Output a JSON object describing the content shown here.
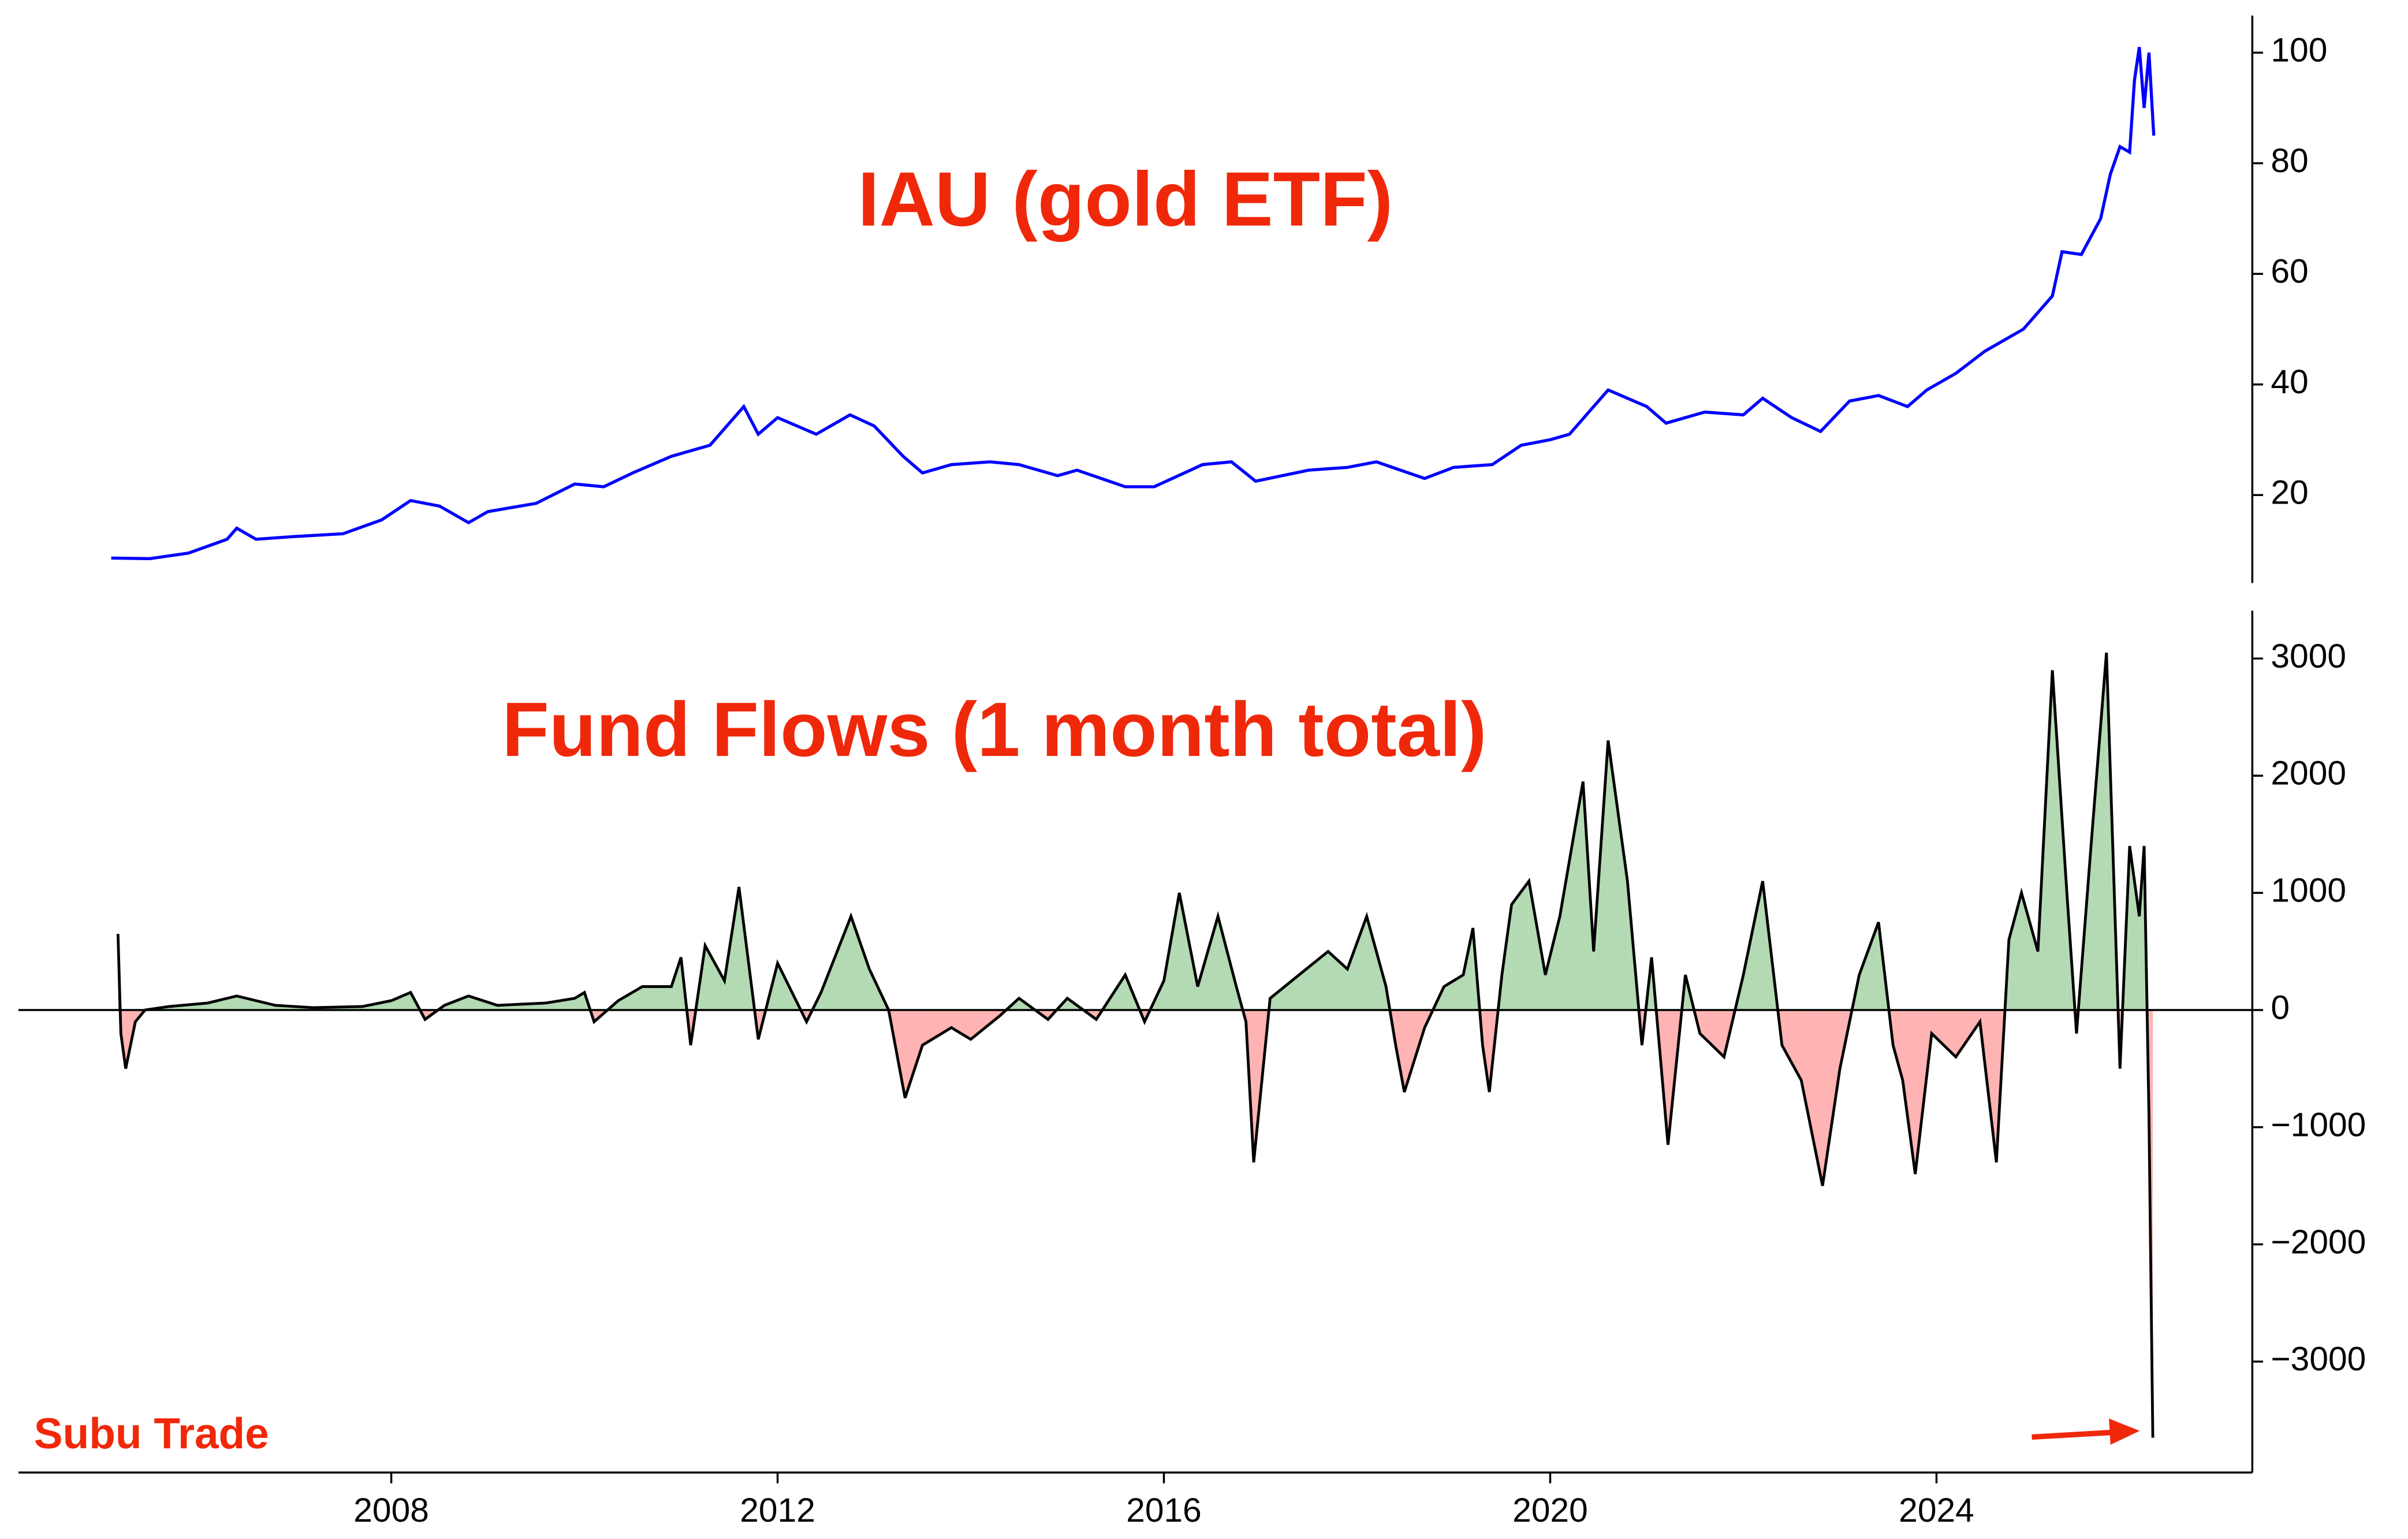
{
  "chart_data": [
    {
      "type": "line",
      "title": "IAU (gold ETF)",
      "color": "#0000ff",
      "xlim": [
        2004.14,
        2027.27
      ],
      "ylim": [
        4.1,
        106.7
      ],
      "yticks": [
        20,
        40,
        60,
        80,
        100
      ],
      "x": [
        2005.1,
        2005.5,
        2005.9,
        2006.3,
        2006.4,
        2006.6,
        2007.0,
        2007.5,
        2007.9,
        2008.2,
        2008.5,
        2008.8,
        2009.0,
        2009.5,
        2009.9,
        2010.2,
        2010.5,
        2010.9,
        2011.3,
        2011.65,
        2011.8,
        2012.0,
        2012.4,
        2012.75,
        2013.0,
        2013.3,
        2013.5,
        2013.8,
        2014.2,
        2014.5,
        2014.9,
        2015.1,
        2015.6,
        2015.9,
        2016.4,
        2016.7,
        2016.95,
        2017.5,
        2017.9,
        2018.2,
        2018.7,
        2019.0,
        2019.4,
        2019.7,
        2020.0,
        2020.2,
        2020.6,
        2021.0,
        2021.2,
        2021.6,
        2022.0,
        2022.2,
        2022.5,
        2022.8,
        2023.1,
        2023.4,
        2023.7,
        2023.9,
        2024.2,
        2024.5,
        2024.9,
        2025.2,
        2025.3,
        2025.5,
        2025.7,
        2025.8,
        2025.9,
        2026.0,
        2026.05,
        2026.1,
        2026.15,
        2026.2,
        2026.25
      ],
      "values": [
        8.6,
        8.5,
        9.5,
        12,
        14,
        12,
        12.5,
        13,
        15.5,
        19,
        18,
        15,
        17,
        18.5,
        22,
        21.5,
        24,
        27,
        29,
        36,
        31,
        34,
        31,
        34.5,
        32.5,
        27,
        24,
        25.5,
        26,
        25.5,
        23.5,
        24.5,
        21.5,
        21.5,
        25.5,
        26,
        22.5,
        24.5,
        25,
        26,
        23,
        25,
        25.5,
        29,
        30,
        31,
        39,
        36,
        33,
        35,
        34.5,
        37.5,
        34,
        31.5,
        37,
        38,
        36,
        39,
        42,
        46,
        50,
        56,
        64,
        63.5,
        70,
        78,
        83,
        82,
        95,
        101,
        90,
        100,
        85
      ]
    },
    {
      "type": "area",
      "title": "Fund Flows (1 month total)",
      "annotation": "Subu Trade",
      "line_color": "#000000",
      "positive_color": "#b3dab3",
      "negative_color": "#ffb3b3",
      "xlim": [
        2004.14,
        2027.27
      ],
      "xticks": [
        2008,
        2012,
        2016,
        2020,
        2024
      ],
      "ylim": [
        -3947,
        3408
      ],
      "yticks": [
        {
          "value": -3000,
          "label": "−3000"
        },
        {
          "value": -2000,
          "label": "−2000"
        },
        {
          "value": -1000,
          "label": "−1000"
        },
        0,
        1000,
        2000,
        3000
      ],
      "x": [
        2005.17,
        2005.2,
        2005.25,
        2005.35,
        2005.45,
        2005.7,
        2006.1,
        2006.4,
        2006.8,
        2007.2,
        2007.7,
        2008.0,
        2008.2,
        2008.35,
        2008.55,
        2008.8,
        2009.1,
        2009.6,
        2009.9,
        2010.0,
        2010.1,
        2010.35,
        2010.6,
        2010.9,
        2011.0,
        2011.1,
        2011.25,
        2011.45,
        2011.6,
        2011.8,
        2012.0,
        2012.3,
        2012.45,
        2012.76,
        2012.95,
        2013.15,
        2013.32,
        2013.5,
        2013.8,
        2014.0,
        2014.3,
        2014.5,
        2014.8,
        2015.0,
        2015.3,
        2015.6,
        2015.8,
        2016.0,
        2016.16,
        2016.35,
        2016.56,
        2016.75,
        2016.85,
        2016.93,
        2017.1,
        2017.4,
        2017.7,
        2017.9,
        2018.1,
        2018.3,
        2018.4,
        2018.49,
        2018.7,
        2018.9,
        2019.1,
        2019.2,
        2019.3,
        2019.37,
        2019.5,
        2019.6,
        2019.78,
        2019.95,
        2020.1,
        2020.34,
        2020.45,
        2020.6,
        2020.8,
        2020.95,
        2021.05,
        2021.22,
        2021.4,
        2021.55,
        2021.8,
        2022.0,
        2022.2,
        2022.4,
        2022.6,
        2022.82,
        2023.0,
        2023.2,
        2023.4,
        2023.55,
        2023.65,
        2023.78,
        2023.95,
        2024.2,
        2024.45,
        2024.62,
        2024.75,
        2024.88,
        2025.05,
        2025.2,
        2025.35,
        2025.45,
        2025.6,
        2025.76,
        2025.9,
        2026.0,
        2026.1,
        2026.15,
        2026.2,
        2026.24
      ],
      "values": [
        650,
        -200,
        -500,
        -100,
        0,
        30,
        60,
        120,
        40,
        20,
        30,
        80,
        150,
        -80,
        40,
        120,
        40,
        60,
        100,
        150,
        -100,
        80,
        200,
        200,
        450,
        -300,
        550,
        250,
        1050,
        -250,
        400,
        -100,
        150,
        800,
        350,
        0,
        -750,
        -300,
        -150,
        -250,
        -50,
        100,
        -80,
        100,
        -80,
        300,
        -100,
        250,
        1000,
        200,
        800,
        200,
        -100,
        -1300,
        100,
        300,
        500,
        350,
        800,
        200,
        -300,
        -700,
        -150,
        200,
        300,
        700,
        -300,
        -700,
        300,
        900,
        1100,
        300,
        800,
        1950,
        500,
        2300,
        1100,
        -300,
        450,
        -1150,
        300,
        -200,
        -400,
        300,
        1100,
        -300,
        -600,
        -1500,
        -500,
        300,
        750,
        -300,
        -600,
        -1400,
        -200,
        -400,
        -100,
        -1300,
        600,
        1000,
        500,
        2900,
        1000,
        -200,
        1400,
        3050,
        -500,
        1400,
        800,
        1400,
        -900,
        -3650
      ]
    }
  ]
}
